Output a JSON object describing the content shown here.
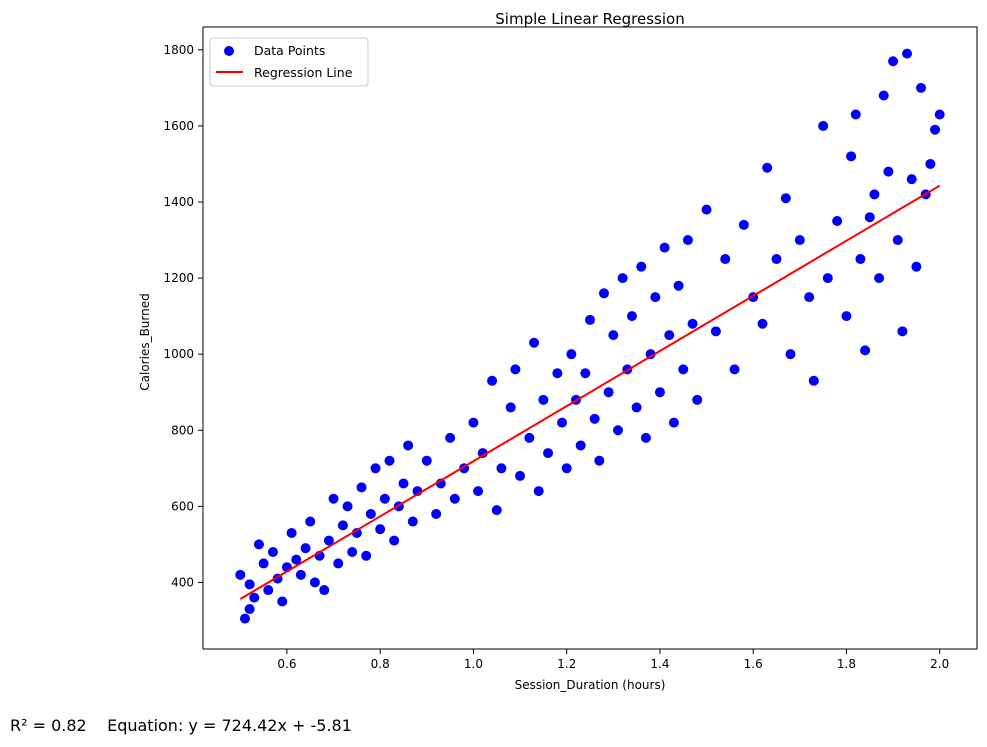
{
  "chart_data": {
    "type": "scatter",
    "title": "Simple Linear Regression",
    "xlabel": "Session_Duration (hours)",
    "ylabel": "Calories_Burned",
    "xlim": [
      0.42,
      2.08
    ],
    "ylim": [
      225,
      1860
    ],
    "xticks": [
      "0.6",
      "0.8",
      "1.0",
      "1.2",
      "1.4",
      "1.6",
      "1.8",
      "2.0"
    ],
    "yticks": [
      "400",
      "600",
      "800",
      "1000",
      "1200",
      "1400",
      "1600",
      "1800"
    ],
    "grid": false,
    "legend_position": "upper-left",
    "series": [
      {
        "name": "Data Points",
        "kind": "scatter",
        "color": "#0000ff",
        "points": [
          [
            0.5,
            420
          ],
          [
            0.51,
            305
          ],
          [
            0.52,
            330
          ],
          [
            0.52,
            395
          ],
          [
            0.53,
            360
          ],
          [
            0.54,
            500
          ],
          [
            0.55,
            450
          ],
          [
            0.56,
            380
          ],
          [
            0.57,
            480
          ],
          [
            0.58,
            410
          ],
          [
            0.59,
            350
          ],
          [
            0.6,
            440
          ],
          [
            0.61,
            530
          ],
          [
            0.62,
            460
          ],
          [
            0.63,
            420
          ],
          [
            0.64,
            490
          ],
          [
            0.65,
            560
          ],
          [
            0.66,
            400
          ],
          [
            0.67,
            470
          ],
          [
            0.68,
            380
          ],
          [
            0.69,
            510
          ],
          [
            0.7,
            620
          ],
          [
            0.71,
            450
          ],
          [
            0.72,
            550
          ],
          [
            0.73,
            600
          ],
          [
            0.74,
            480
          ],
          [
            0.75,
            530
          ],
          [
            0.76,
            650
          ],
          [
            0.77,
            470
          ],
          [
            0.78,
            580
          ],
          [
            0.79,
            700
          ],
          [
            0.8,
            540
          ],
          [
            0.81,
            620
          ],
          [
            0.82,
            720
          ],
          [
            0.83,
            510
          ],
          [
            0.84,
            600
          ],
          [
            0.85,
            660
          ],
          [
            0.86,
            760
          ],
          [
            0.87,
            560
          ],
          [
            0.88,
            640
          ],
          [
            0.9,
            720
          ],
          [
            0.92,
            580
          ],
          [
            0.93,
            660
          ],
          [
            0.95,
            780
          ],
          [
            0.96,
            620
          ],
          [
            0.98,
            700
          ],
          [
            1.0,
            820
          ],
          [
            1.01,
            640
          ],
          [
            1.02,
            740
          ],
          [
            1.04,
            930
          ],
          [
            1.05,
            590
          ],
          [
            1.06,
            700
          ],
          [
            1.08,
            860
          ],
          [
            1.09,
            960
          ],
          [
            1.1,
            680
          ],
          [
            1.12,
            780
          ],
          [
            1.13,
            1030
          ],
          [
            1.14,
            640
          ],
          [
            1.15,
            880
          ],
          [
            1.16,
            740
          ],
          [
            1.18,
            950
          ],
          [
            1.19,
            820
          ],
          [
            1.2,
            700
          ],
          [
            1.21,
            1000
          ],
          [
            1.22,
            880
          ],
          [
            1.23,
            760
          ],
          [
            1.24,
            950
          ],
          [
            1.25,
            1090
          ],
          [
            1.26,
            830
          ],
          [
            1.27,
            720
          ],
          [
            1.28,
            1160
          ],
          [
            1.29,
            900
          ],
          [
            1.3,
            1050
          ],
          [
            1.31,
            800
          ],
          [
            1.32,
            1200
          ],
          [
            1.33,
            960
          ],
          [
            1.34,
            1100
          ],
          [
            1.35,
            860
          ],
          [
            1.36,
            1230
          ],
          [
            1.37,
            780
          ],
          [
            1.38,
            1000
          ],
          [
            1.39,
            1150
          ],
          [
            1.4,
            900
          ],
          [
            1.41,
            1280
          ],
          [
            1.42,
            1050
          ],
          [
            1.43,
            820
          ],
          [
            1.44,
            1180
          ],
          [
            1.45,
            960
          ],
          [
            1.46,
            1300
          ],
          [
            1.47,
            1080
          ],
          [
            1.48,
            880
          ],
          [
            1.5,
            1380
          ],
          [
            1.52,
            1060
          ],
          [
            1.54,
            1250
          ],
          [
            1.56,
            960
          ],
          [
            1.58,
            1340
          ],
          [
            1.6,
            1150
          ],
          [
            1.62,
            1080
          ],
          [
            1.63,
            1490
          ],
          [
            1.65,
            1250
          ],
          [
            1.67,
            1410
          ],
          [
            1.68,
            1000
          ],
          [
            1.7,
            1300
          ],
          [
            1.72,
            1150
          ],
          [
            1.73,
            930
          ],
          [
            1.75,
            1600
          ],
          [
            1.76,
            1200
          ],
          [
            1.78,
            1350
          ],
          [
            1.8,
            1100
          ],
          [
            1.81,
            1520
          ],
          [
            1.82,
            1630
          ],
          [
            1.83,
            1250
          ],
          [
            1.84,
            1010
          ],
          [
            1.85,
            1360
          ],
          [
            1.86,
            1420
          ],
          [
            1.87,
            1200
          ],
          [
            1.88,
            1680
          ],
          [
            1.89,
            1480
          ],
          [
            1.9,
            1770
          ],
          [
            1.91,
            1300
          ],
          [
            1.92,
            1060
          ],
          [
            1.93,
            1790
          ],
          [
            1.94,
            1460
          ],
          [
            1.95,
            1230
          ],
          [
            1.96,
            1700
          ],
          [
            1.97,
            1420
          ],
          [
            1.98,
            1500
          ],
          [
            1.99,
            1590
          ],
          [
            2.0,
            1630
          ]
        ]
      },
      {
        "name": "Regression Line",
        "kind": "line",
        "color": "#ff0000",
        "slope": 724.42,
        "intercept": -5.81,
        "x_range": [
          0.5,
          2.0
        ]
      }
    ]
  },
  "stats": {
    "r2": "R² = 0.82",
    "equation": "Equation: y = 724.42x + -5.81"
  }
}
